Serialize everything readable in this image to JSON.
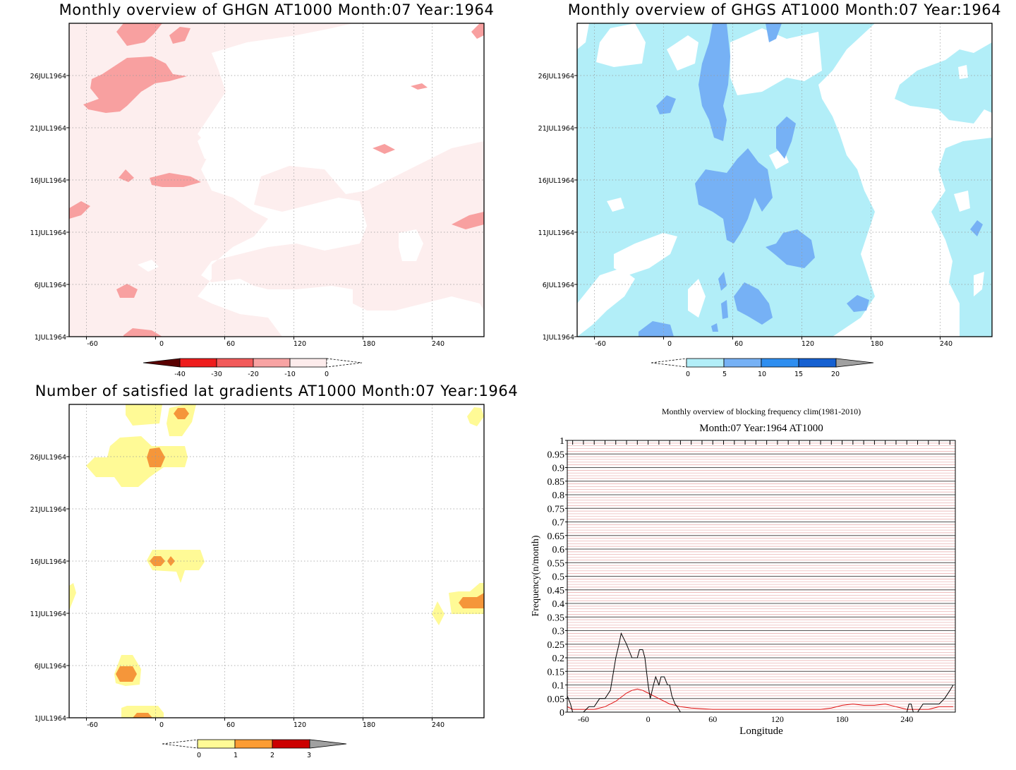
{
  "panels": {
    "ghgn": {
      "title": "Monthly overview of GHGN AT1000 Month:07 Year:1964",
      "y_ticks": [
        "1JUL1964",
        "6JUL1964",
        "11JUL1964",
        "16JUL1964",
        "21JUL1964",
        "26JUL1964"
      ],
      "x_ticks": [
        "-60",
        "0",
        "60",
        "120",
        "180",
        "240"
      ],
      "colorbar": {
        "labels": [
          "-40",
          "-30",
          "-20",
          "-10",
          "0"
        ],
        "colors": [
          "#5a0000",
          "#ee1c1c",
          "#f25a5a",
          "#f8a3a3",
          "#fdecec"
        ]
      },
      "fill": "#fdeeee",
      "contour_colors": {
        "level_1": "#ffffff",
        "level_2": "#f8a0a0"
      }
    },
    "ghgs": {
      "title": "Monthly overview of GHGS AT1000 Month:07 Year:1964",
      "y_ticks": [
        "1JUL1964",
        "6JUL1964",
        "11JUL1964",
        "16JUL1964",
        "21JUL1964",
        "26JUL1964"
      ],
      "x_ticks": [
        "-60",
        "0",
        "60",
        "120",
        "180",
        "240"
      ],
      "colorbar": {
        "labels": [
          "0",
          "5",
          "10",
          "15",
          "20"
        ],
        "colors": [
          "#b2eef8",
          "#76b1f5",
          "#2e8ef0",
          "#1560d1",
          "#a0a0a0"
        ]
      },
      "contour_colors": {
        "level_1": "#b2eef8",
        "level_2": "#76b1f5"
      }
    },
    "gradients": {
      "title": "Number of satisfied lat gradients AT1000 Month:07 Year:1964",
      "y_ticks": [
        "1JUL1964",
        "6JUL1964",
        "11JUL1964",
        "16JUL1964",
        "21JUL1964",
        "26JUL1964"
      ],
      "x_ticks": [
        "-60",
        "0",
        "60",
        "120",
        "180",
        "240"
      ],
      "colorbar": {
        "labels": [
          "0",
          "1",
          "2",
          "3"
        ],
        "colors": [
          "#fffa96",
          "#fc9c33",
          "#cc0000",
          "#a0a0a0"
        ]
      },
      "contour_colors": {
        "level_1": "#fffa96",
        "level_2": "#f5963a"
      }
    },
    "blocking": {
      "title": "Monthly overview of blocking frequency clim(1981-2010)",
      "subtitle": "Month:07 Year:1964  AT1000",
      "xlabel": "Longitude",
      "ylabel": "Frequency(n/month)",
      "x_ticks": [
        "-60",
        "0",
        "60",
        "120",
        "180",
        "240"
      ],
      "y_ticks": [
        "0",
        "0.05",
        "0.1",
        "0.15",
        "0.2",
        "0.25",
        "0.3",
        "0.35",
        "0.4",
        "0.45",
        "0.5",
        "0.55",
        "0.6",
        "0.65",
        "0.7",
        "0.75",
        "0.8",
        "0.85",
        "0.9",
        "0.95",
        "1"
      ],
      "colors": {
        "observed": "#000000",
        "climatology": "#e01010",
        "hatch": "#e8a8a8"
      }
    }
  },
  "chart_data": [
    {
      "type": "heatmap",
      "title": "Monthly overview of GHGN AT1000 Month:07 Year:1964",
      "x_range": [
        -75,
        285
      ],
      "y_range": [
        "1JUL1964",
        "31JUL1964"
      ],
      "levels": [
        -40,
        -30,
        -20,
        -10,
        0
      ],
      "grid": true
    },
    {
      "type": "heatmap",
      "title": "Monthly overview of GHGS AT1000 Month:07 Year:1964",
      "x_range": [
        -75,
        285
      ],
      "y_range": [
        "1JUL1964",
        "31JUL1964"
      ],
      "levels": [
        0,
        5,
        10,
        15,
        20
      ],
      "grid": true
    },
    {
      "type": "heatmap",
      "title": "Number of satisfied lat gradients AT1000 Month:07 Year:1964",
      "x_range": [
        -75,
        285
      ],
      "y_range": [
        "1JUL1964",
        "31JUL1964"
      ],
      "levels": [
        0,
        1,
        2,
        3
      ],
      "grid": true
    },
    {
      "type": "line",
      "title": "Monthly overview of blocking frequency clim(1981-2010)",
      "subtitle": "Month:07 Year:1964  AT1000",
      "xlabel": "Longitude",
      "ylabel": "Frequency(n/month)",
      "xlim": [
        -75,
        285
      ],
      "ylim": [
        0,
        1
      ],
      "series": [
        {
          "x": [
            -75,
            -72,
            -70,
            -65,
            -60,
            -55,
            -50,
            -45,
            -40,
            -35,
            -30,
            -27,
            -25,
            -20,
            -18,
            -15,
            -12,
            -10,
            -8,
            -5,
            -3,
            0,
            2,
            5,
            7,
            10,
            12,
            15,
            18,
            20,
            22,
            25,
            27,
            30,
            35,
            40,
            50,
            60,
            80,
            100,
            120,
            140,
            160,
            180,
            200,
            220,
            240,
            242,
            244,
            246,
            248,
            250,
            255,
            260,
            265,
            270,
            275,
            280,
            283
          ],
          "values": [
            0.06,
            0.03,
            0.0,
            0.0,
            0.0,
            0.02,
            0.02,
            0.05,
            0.05,
            0.08,
            0.2,
            0.25,
            0.29,
            0.25,
            0.23,
            0.2,
            0.2,
            0.2,
            0.23,
            0.23,
            0.2,
            0.1,
            0.05,
            0.1,
            0.13,
            0.1,
            0.13,
            0.13,
            0.1,
            0.1,
            0.06,
            0.03,
            0.02,
            0.0,
            0.0,
            0.0,
            0.0,
            0.0,
            0.0,
            0.0,
            0.0,
            0.0,
            0.0,
            0.0,
            0.0,
            0.0,
            0.0,
            0.03,
            0.03,
            0.0,
            0.0,
            0.0,
            0.03,
            0.03,
            0.03,
            0.03,
            0.05,
            0.08,
            0.1
          ]
        },
        {
          "x": [
            -75,
            -70,
            -60,
            -50,
            -40,
            -30,
            -20,
            -15,
            -10,
            -5,
            0,
            10,
            20,
            30,
            40,
            60,
            80,
            100,
            120,
            140,
            160,
            170,
            180,
            190,
            200,
            210,
            220,
            230,
            240,
            250,
            260,
            270,
            280,
            283
          ],
          "values": [
            0.02,
            0.01,
            0.01,
            0.01,
            0.02,
            0.04,
            0.07,
            0.08,
            0.085,
            0.08,
            0.07,
            0.05,
            0.03,
            0.02,
            0.015,
            0.01,
            0.01,
            0.01,
            0.01,
            0.01,
            0.01,
            0.015,
            0.025,
            0.03,
            0.025,
            0.025,
            0.03,
            0.02,
            0.01,
            0.01,
            0.01,
            0.02,
            0.02,
            0.02
          ]
        }
      ]
    }
  ]
}
